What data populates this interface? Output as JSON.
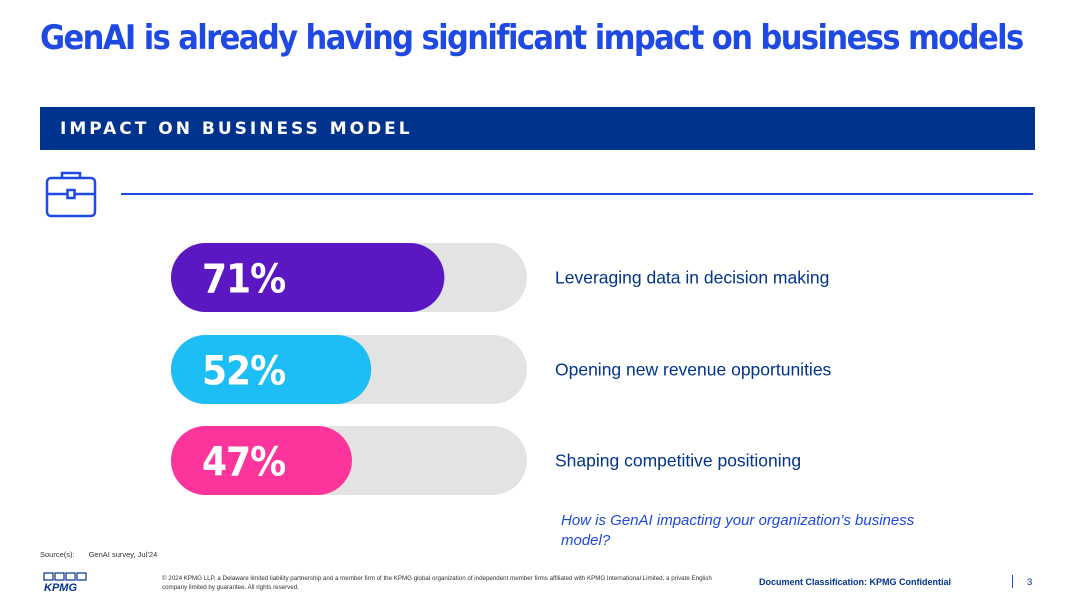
{
  "slide": {
    "title": "GenAI is already having significant impact on business models",
    "banner": "IMPACT ON BUSINESS MODEL",
    "question": "How is GenAI impacting your organization’s business model?",
    "source_label": "Source(s):",
    "source_value": "GenAI survey, Jul’24",
    "logo_text": "KPMG",
    "legal": "© 2024 KPMG LLP, a Delaware limited liability partnership and a member firm of the KPMG global organization of independent member firms affiliated with KPMG International Limited, a private English company limited by guarantee. All rights reserved.",
    "classification": "Document Classification: KPMG Confidential",
    "page_number": "3"
  },
  "colors": {
    "title": "#1e49e2",
    "banner": "#00338d",
    "track": "#e3e3e3",
    "bars": [
      "#5a17c2",
      "#1dbdf5",
      "#fd349c"
    ]
  },
  "chart_data": {
    "type": "bar",
    "orientation": "horizontal",
    "title": "IMPACT ON BUSINESS MODEL",
    "unit": "%",
    "xlim": [
      0,
      100
    ],
    "categories": [
      "Leveraging data in decision making",
      "Opening new revenue opportunities",
      "Shaping competitive positioning"
    ],
    "values": [
      71,
      52,
      47
    ],
    "value_labels": [
      "71%",
      "52%",
      "47%"
    ]
  }
}
